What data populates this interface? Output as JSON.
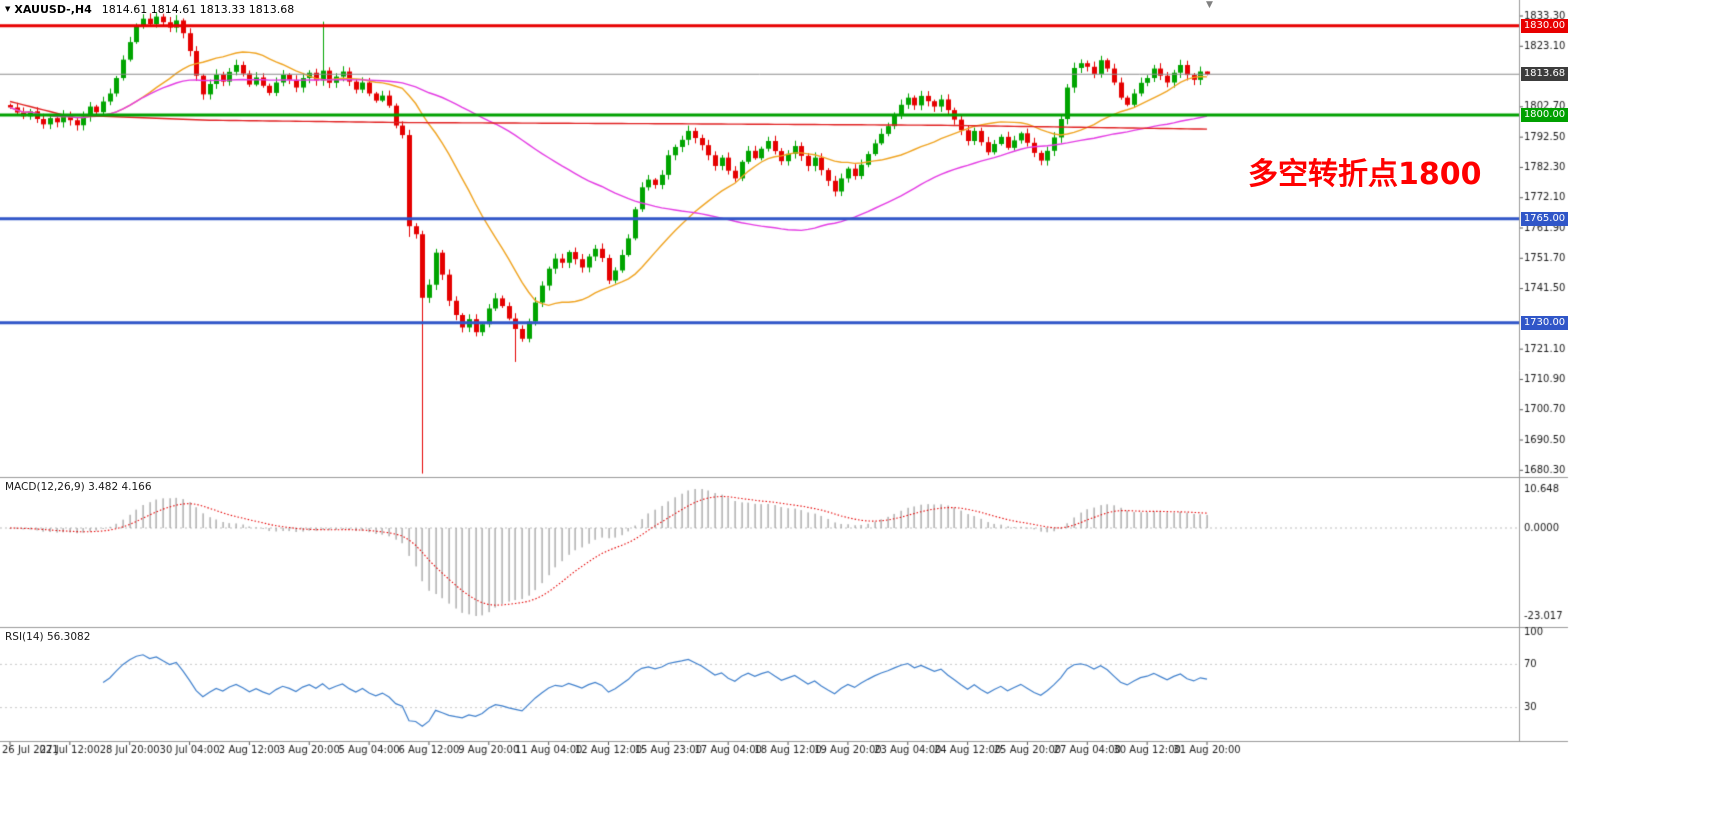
{
  "header": {
    "dropdown_icon": "▼",
    "symbol": "XAUUSD-,H4",
    "ohlc": "1814.61 1814.61 1813.33 1813.68",
    "shift_marker_icon": "▼"
  },
  "annotation": {
    "text": "多空转折点1800",
    "color": "#FF0000"
  },
  "levels": [
    {
      "label": "1830.00",
      "price": 1830.0,
      "color": "#E80000",
      "line_width": 3
    },
    {
      "label": "1800.00",
      "price": 1800.0,
      "color": "#00A000",
      "line_width": 3
    },
    {
      "label": "1765.00",
      "price": 1765.0,
      "color": "#3056C8",
      "line_width": 3
    },
    {
      "label": "1730.00",
      "price": 1730.0,
      "color": "#3056C8",
      "line_width": 3
    }
  ],
  "current_price": {
    "label": "1813.68",
    "price": 1813.68,
    "badge_color": "#3C3C3C",
    "line_color": "#8C8C8C"
  },
  "price_axis": {
    "ticks": [
      1833.3,
      1823.1,
      1812.9,
      1802.7,
      1792.5,
      1782.3,
      1772.1,
      1761.9,
      1751.7,
      1741.5,
      1731.3,
      1721.1,
      1710.9,
      1700.7,
      1690.5,
      1680.3
    ]
  },
  "macd_panel": {
    "label": "MACD(12,26,9) 3.482 4.166",
    "params": [
      12,
      26,
      9
    ],
    "current_values": {
      "macd": 3.482,
      "signal": 4.166
    },
    "axis_labels": [
      "10.648",
      "0.0000",
      "-23.017"
    ],
    "axis_max": 10.648,
    "axis_min": -23.017
  },
  "rsi_panel": {
    "label": "RSI(14) 56.3082",
    "period": 14,
    "current_value": 56.3082,
    "axis_labels": [
      "100",
      "70",
      "30"
    ],
    "levels": [
      70,
      30
    ],
    "range": [
      0,
      100
    ]
  },
  "time_axis": {
    "labels": [
      "26 Jul 2021",
      "27 Jul 12:00",
      "28 Jul 20:00",
      "30 Jul 04:00",
      "2 Aug 12:00",
      "3 Aug 20:00",
      "5 Aug 04:00",
      "6 Aug 12:00",
      "9 Aug 20:00",
      "11 Aug 04:00",
      "12 Aug 12:00",
      "15 Aug 23:00",
      "17 Aug 04:00",
      "18 Aug 12:00",
      "19 Aug 20:00",
      "23 Aug 04:00",
      "24 Aug 12:00",
      "25 Aug 20:00",
      "27 Aug 04:00",
      "30 Aug 12:00",
      "31 Aug 20:00"
    ],
    "candles_per_label": 9
  },
  "chart_data": {
    "type": "candlestick",
    "symbol": "XAUUSD",
    "timeframe": "H4",
    "visible_price_range": [
      1680.3,
      1833.3
    ],
    "current_candle_ohlc": {
      "open": 1814.61,
      "high": 1814.61,
      "low": 1813.33,
      "close": 1813.68
    },
    "closes": [
      1802.5,
      1800.8,
      1799.5,
      1801.2,
      1798.6,
      1796.8,
      1798.9,
      1797.5,
      1799.8,
      1798.2,
      1796.5,
      1799.4,
      1802.8,
      1800.9,
      1804.5,
      1807.2,
      1812.4,
      1818.6,
      1824.5,
      1829.8,
      1832.4,
      1830.6,
      1833.1,
      1831.2,
      1829.4,
      1831.8,
      1827.5,
      1821.5,
      1813.2,
      1806.9,
      1810.4,
      1813.6,
      1811.2,
      1814.5,
      1816.8,
      1813.9,
      1810.2,
      1812.6,
      1809.8,
      1807.4,
      1810.9,
      1813.5,
      1811.8,
      1809.2,
      1812.4,
      1814.2,
      1811.6,
      1814.9,
      1810.8,
      1812.9,
      1814.6,
      1811.2,
      1808.5,
      1810.9,
      1807.2,
      1804.8,
      1806.5,
      1803.1,
      1796.4,
      1793.2,
      1762.5,
      1759.8,
      1738.4,
      1742.8,
      1753.6,
      1746.2,
      1737.4,
      1732.6,
      1728.4,
      1731.2,
      1726.8,
      1729.5,
      1734.8,
      1738.2,
      1735.6,
      1731.4,
      1727.9,
      1724.6,
      1730.4,
      1736.8,
      1742.5,
      1748.2,
      1751.6,
      1750.2,
      1753.8,
      1751.4,
      1748.6,
      1752.3,
      1754.9,
      1751.8,
      1744.2,
      1747.6,
      1752.8,
      1758.4,
      1768.2,
      1775.6,
      1778.2,
      1776.4,
      1779.8,
      1786.4,
      1789.2,
      1791.6,
      1794.6,
      1792.2,
      1789.8,
      1786.4,
      1782.8,
      1785.6,
      1781.2,
      1778.6,
      1784.2,
      1787.9,
      1785.4,
      1788.6,
      1791.2,
      1787.8,
      1784.4,
      1786.9,
      1789.5,
      1786.2,
      1782.8,
      1785.6,
      1781.4,
      1777.8,
      1774.2,
      1778.6,
      1781.9,
      1779.4,
      1783.2,
      1786.8,
      1790.4,
      1793.6,
      1796.2,
      1799.8,
      1803.4,
      1805.8,
      1803.2,
      1806.4,
      1804.6,
      1802.8,
      1805.2,
      1801.6,
      1798.4,
      1794.8,
      1791.2,
      1794.6,
      1790.8,
      1787.4,
      1790.2,
      1792.6,
      1788.9,
      1791.4,
      1793.8,
      1790.6,
      1787.2,
      1784.6,
      1787.9,
      1792.4,
      1798.6,
      1809.2,
      1815.8,
      1817.4,
      1816.2,
      1813.8,
      1818.4,
      1815.6,
      1810.9,
      1805.8,
      1803.4,
      1807.2,
      1810.8,
      1812.4,
      1815.6,
      1813.2,
      1810.9,
      1814.2,
      1816.8,
      1813.4,
      1811.8,
      1814.61,
      1813.68
    ],
    "candle_overrides": {
      "20": {
        "h": 1833.9
      },
      "22": {
        "h": 1834.4
      },
      "25": {
        "h": 1833.6
      },
      "47": {
        "h": 1831.4
      },
      "60": {
        "l": 1758.9
      },
      "62": {
        "l": 1679.2
      },
      "76": {
        "l": 1716.8
      },
      "180": {
        "h": 1814.61,
        "l": 1813.33
      }
    },
    "overlays": [
      {
        "name": "MA-fast",
        "type": "sma",
        "period": 20,
        "color": "#EFA320"
      },
      {
        "name": "MA-medium",
        "type": "sma",
        "period": 60,
        "color": "#E33BE3"
      },
      {
        "name": "MA-slow",
        "type": "waypoints",
        "color": "#E02020",
        "points": [
          [
            0,
            1804.5
          ],
          [
            8,
            1800.0
          ],
          [
            30,
            1798.2
          ],
          [
            60,
            1797.4
          ],
          [
            100,
            1797.0
          ],
          [
            140,
            1796.5
          ],
          [
            180,
            1795.2
          ]
        ]
      }
    ],
    "colors": {
      "up": "#00A400",
      "down": "#E50000",
      "macd_hist": "#9C9C9C",
      "macd_signal": "#E50000",
      "rsi_line": "#3E7FCC",
      "zero_line": "#BBBBBB",
      "levels_dotted": "#C8C8C8",
      "axis_text": "#1A1A1A",
      "separator": "#999999"
    }
  }
}
